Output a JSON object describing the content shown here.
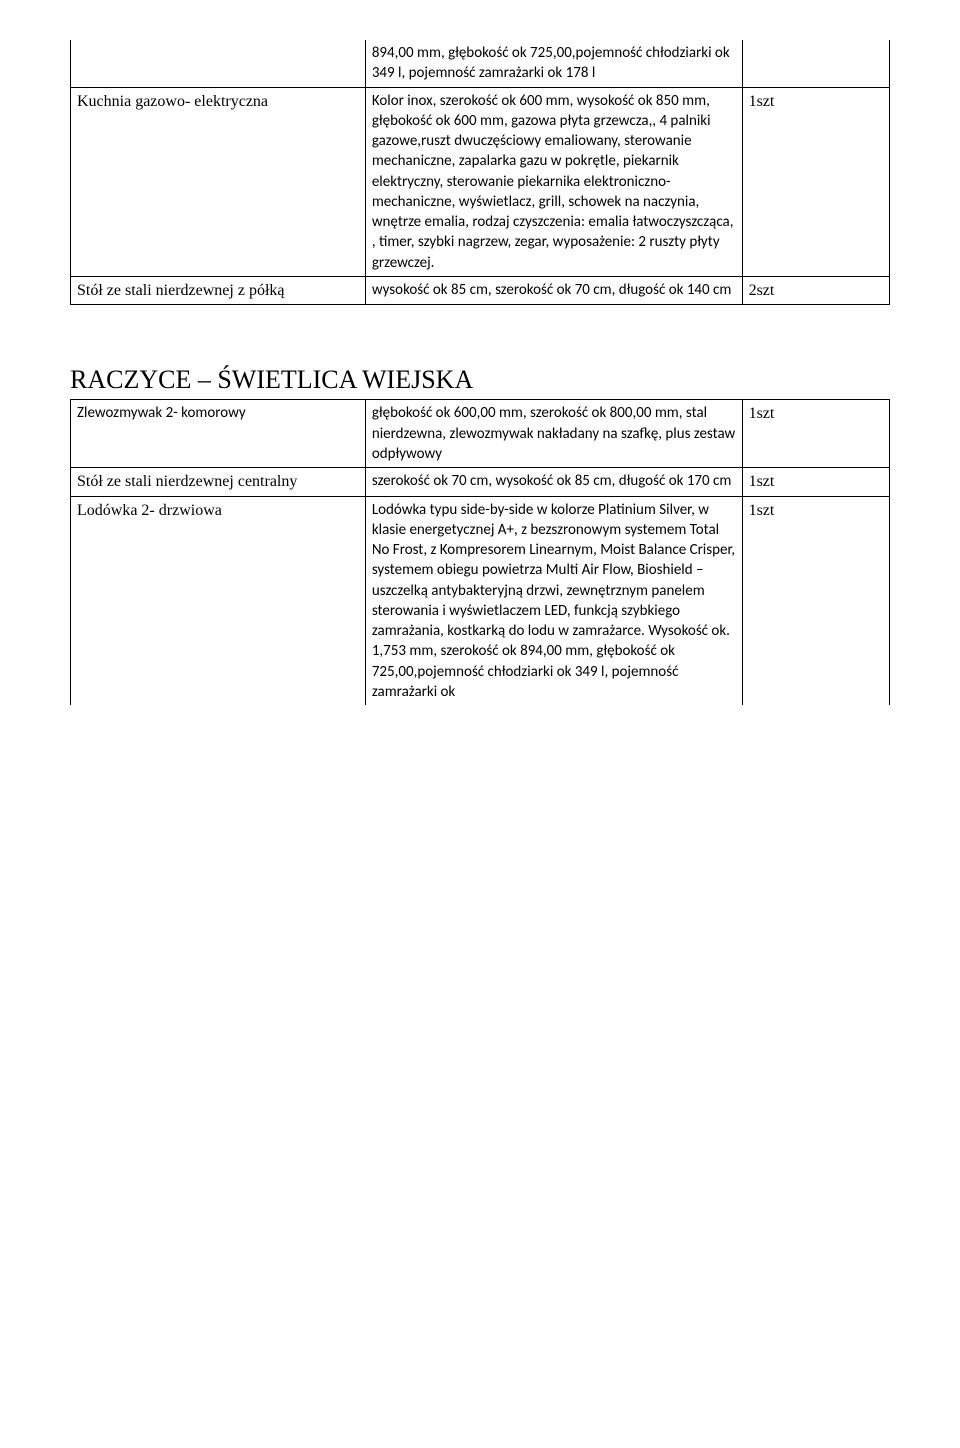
{
  "top_table": {
    "row0_col2": "894,00 mm, głębokość ok 725,00,pojemność chłodziarki ok 349 l, pojemność zamrażarki ok 178 l",
    "row1_col1": "Kuchnia gazowo- elektryczna",
    "row1_col2": "Kolor inox, szerokość ok 600 mm, wysokość ok 850 mm, głębokość ok 600 mm, gazowa płyta grzewcza,, 4 palniki gazowe,ruszt dwuczęściowy emaliowany, sterowanie mechaniczne, zapalarka gazu w pokrętle, piekarnik elektryczny, sterowanie piekarnika elektroniczno-mechaniczne, wyświetlacz, grill, schowek na naczynia, wnętrze emalia, rodzaj czyszczenia: emalia łatwoczyszcząca, , timer, szybki nagrzew, zegar, wyposażenie: 2 ruszty płyty grzewczej.",
    "row1_col3": "1szt",
    "row2_col1": "Stół ze stali nierdzewnej z półką",
    "row2_col2": "wysokość ok 85 cm, szerokość ok 70 cm, długość ok 140 cm",
    "row2_col3": "2szt"
  },
  "section2_title": "RACZYCE – ŚWIETLICA WIEJSKA",
  "table2": {
    "row0_col1": "Zlewozmywak 2- komorowy",
    "row0_col2": "głębokość ok 600,00 mm, szerokość ok 800,00 mm, stal nierdzewna, zlewozmywak nakładany na szafkę, plus zestaw odpływowy",
    "row0_col3": "1szt",
    "row1_col1": "Stół ze stali nierdzewnej centralny",
    "row1_col2": "szerokość ok 70 cm, wysokość ok 85 cm, długość ok 170 cm",
    "row1_col3": "1szt",
    "row2_col1": "Lodówka 2- drzwiowa",
    "row2_col2": "Lodówka typu side-by-side w kolorze Platinium Silver, w klasie energetycznej A+, z bezszronowym systemem Total No Frost, z Kompresorem Linearnym, Moist Balance Crisper, systemem obiegu powietrza Multi Air Flow, Bioshield – uszczelką antybakteryjną drzwi, zewnętrznym panelem sterowania i wyświetlaczem LED, funkcją szybkiego zamrażania, kostkarką do lodu w zamrażarce. Wysokość ok. 1,753 mm, szerokość ok 894,00 mm, głębokość ok 725,00,pojemność chłodziarki ok 349 l, pojemność zamrażarki ok",
    "row2_col3": "1szt"
  }
}
